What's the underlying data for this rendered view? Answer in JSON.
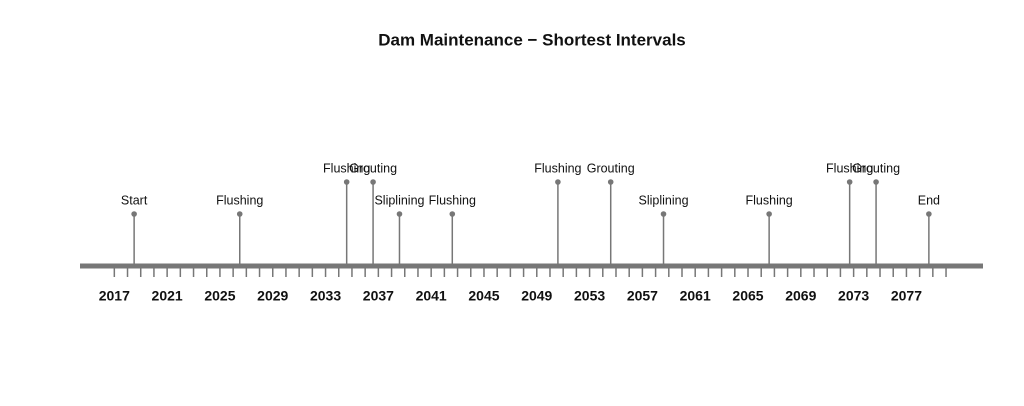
{
  "chart_data": {
    "type": "timeline",
    "title": "Dam Maintenance − Shortest Intervals",
    "x": [
      2018.5,
      2026.5,
      2034.6,
      2036.6,
      2038.6,
      2042.6,
      2050.6,
      2054.6,
      2058.6,
      2066.6,
      2072.7,
      2074.7,
      2078.7
    ],
    "labels": [
      "Start",
      "Flushing",
      "Flushing",
      "Grouting",
      "Sliplining",
      "Flushing",
      "Flushing",
      "Grouting",
      "Sliplining",
      "Flushing",
      "Flushing",
      "Grouting",
      "End"
    ],
    "color": "#777777",
    "xlim": [
      2014.4,
      2082.8
    ],
    "xticks": [
      2017,
      2021,
      2025,
      2029,
      2033,
      2037,
      2041,
      2045,
      2049,
      2053,
      2057,
      2061,
      2065,
      2069,
      2073,
      2077
    ],
    "xminorticks": [
      2017,
      2018,
      2019,
      2020,
      2021,
      2022,
      2023,
      2024,
      2025,
      2026,
      2027,
      2028,
      2029,
      2030,
      2031,
      2032,
      2033,
      2034,
      2035,
      2036,
      2037,
      2038,
      2039,
      2040,
      2041,
      2042,
      2043,
      2044,
      2045,
      2046,
      2047,
      2048,
      2049,
      2050,
      2051,
      2052,
      2053,
      2054,
      2055,
      2056,
      2057,
      2058,
      2059,
      2060,
      2061,
      2062,
      2063,
      2064,
      2065,
      2066,
      2067,
      2068,
      2069,
      2070,
      2071,
      2072,
      2073,
      2074,
      2075,
      2076,
      2077,
      2078,
      2079,
      2080
    ]
  }
}
